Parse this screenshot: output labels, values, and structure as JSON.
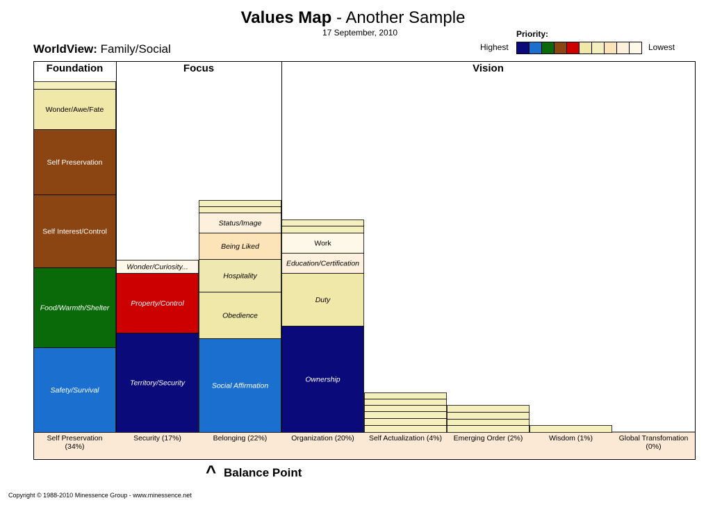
{
  "header": {
    "title_bold": "Values Map",
    "title_rest": " - Another Sample",
    "date": "17 September, 2010",
    "worldview_label": "WorldView:",
    "worldview_value": " Family/Social"
  },
  "legend": {
    "label": "Priority:",
    "highest": "Highest",
    "lowest": "Lowest",
    "colors": [
      "#0a0a7a",
      "#1a6fcf",
      "#0a6a0a",
      "#8b4513",
      "#cc0000",
      "#f0e8a8",
      "#f5efbd",
      "#fce4b8",
      "#fdf0dc",
      "#fdf8e8"
    ]
  },
  "footer": {
    "balance_caret": "^",
    "balance_label": "Balance Point",
    "copyright": "Copyright © 1988-2010 Minessence Group - www.minessence.net"
  },
  "chart_data": {
    "type": "bar",
    "sections": [
      {
        "label": "Foundation",
        "columns": [
          0
        ]
      },
      {
        "label": "Focus",
        "columns": [
          1,
          2
        ]
      },
      {
        "label": "Vision",
        "columns": [
          3,
          4,
          5,
          6,
          7
        ]
      }
    ],
    "categories": [
      {
        "line1": "Self Preservation",
        "line2": "(34%)"
      },
      {
        "line1": "Security  (17%)",
        "line2": ""
      },
      {
        "line1": "Belonging (22%)",
        "line2": ""
      },
      {
        "line1": "Organization (20%)",
        "line2": ""
      },
      {
        "line1": "Self Actualization  (4%)",
        "line2": ""
      },
      {
        "line1": "Emerging Order (2%)",
        "line2": ""
      },
      {
        "line1": "Wisdom  (1%)",
        "line2": ""
      },
      {
        "line1": "Global Transfomation",
        "line2": "(0%)"
      }
    ],
    "percentages": [
      34,
      17,
      22,
      20,
      4,
      2,
      1,
      0
    ],
    "stacks": [
      [
        {
          "label": "Safety/Survival",
          "value": 122,
          "color": "#1a6fcf",
          "text_color": "#ffffff",
          "italic": true
        },
        {
          "label": "Food/Warmth/Shelter",
          "value": 115,
          "color": "#0a6a0a",
          "text_color": "#ffffff",
          "italic": true
        },
        {
          "label": "Self Interest/Control",
          "value": 105,
          "color": "#8b4513",
          "text_color": "#ffffff",
          "italic": false
        },
        {
          "label": "Self Preservation",
          "value": 94,
          "color": "#8b4513",
          "text_color": "#ffffff",
          "italic": false
        },
        {
          "label": "Wonder/Awe/Fate",
          "value": 58,
          "color": "#f0e8a8",
          "text_color": "#000000",
          "italic": false
        },
        {
          "label": "",
          "value": 11,
          "color": "#f5efbd",
          "text_color": "#000000",
          "italic": false
        }
      ],
      [
        {
          "label": "Territory/Security",
          "value": 143,
          "color": "#0a0a7a",
          "text_color": "#ffffff",
          "italic": true
        },
        {
          "label": "Property/Control",
          "value": 86,
          "color": "#cc0000",
          "text_color": "#ffffff",
          "italic": true
        },
        {
          "label": "Wonder/Curiosity...",
          "value": 19,
          "color": "#fdf8e8",
          "text_color": "#000000",
          "italic": true
        }
      ],
      [
        {
          "label": "Social Affirmation",
          "value": 135,
          "color": "#1a6fcf",
          "text_color": "#ffffff",
          "italic": true
        },
        {
          "label": "Obedience",
          "value": 67,
          "color": "#f0e8a8",
          "text_color": "#000000",
          "italic": true
        },
        {
          "label": "Hospitality",
          "value": 47,
          "color": "#efe8b0",
          "text_color": "#000000",
          "italic": true
        },
        {
          "label": "Being Liked",
          "value": 38,
          "color": "#fce4b8",
          "text_color": "#000000",
          "italic": true
        },
        {
          "label": "Status/Image",
          "value": 29,
          "color": "#fdf0dc",
          "text_color": "#000000",
          "italic": true
        },
        {
          "label": "",
          "value": 9,
          "color": "#f5efbd",
          "text_color": "#000000",
          "italic": false
        },
        {
          "label": "",
          "value": 9,
          "color": "#f5efbd",
          "text_color": "#000000",
          "italic": false
        }
      ],
      [
        {
          "label": "Ownership",
          "value": 153,
          "color": "#0a0a7a",
          "text_color": "#ffffff",
          "italic": true
        },
        {
          "label": "Duty",
          "value": 76,
          "color": "#f0e8a8",
          "text_color": "#000000",
          "italic": true
        },
        {
          "label": "Education/Certification",
          "value": 29,
          "color": "#fdf0dc",
          "text_color": "#000000",
          "italic": true
        },
        {
          "label": "Work",
          "value": 29,
          "color": "#fdf8e8",
          "text_color": "#000000",
          "italic": false
        },
        {
          "label": "",
          "value": 10,
          "color": "#f5efbd",
          "text_color": "#000000",
          "italic": false
        },
        {
          "label": "",
          "value": 9,
          "color": "#f5efbd",
          "text_color": "#000000",
          "italic": false
        }
      ],
      [
        {
          "label": "",
          "value": 10,
          "color": "#f5efbd",
          "text_color": "#000000",
          "italic": false
        },
        {
          "label": "",
          "value": 10,
          "color": "#f5efbd",
          "text_color": "#000000",
          "italic": false
        },
        {
          "label": "",
          "value": 10,
          "color": "#f5efbd",
          "text_color": "#000000",
          "italic": false
        },
        {
          "label": "",
          "value": 9,
          "color": "#f5efbd",
          "text_color": "#000000",
          "italic": false
        },
        {
          "label": "",
          "value": 9,
          "color": "#f5efbd",
          "text_color": "#000000",
          "italic": false
        },
        {
          "label": "",
          "value": 9,
          "color": "#f5efbd",
          "text_color": "#000000",
          "italic": false
        }
      ],
      [
        {
          "label": "",
          "value": 10,
          "color": "#f5efbd",
          "text_color": "#000000",
          "italic": false
        },
        {
          "label": "",
          "value": 9,
          "color": "#f5efbd",
          "text_color": "#000000",
          "italic": false
        },
        {
          "label": "",
          "value": 10,
          "color": "#f5efbd",
          "text_color": "#000000",
          "italic": false
        },
        {
          "label": "",
          "value": 10,
          "color": "#f5efbd",
          "text_color": "#000000",
          "italic": false
        }
      ],
      [
        {
          "label": "",
          "value": 10,
          "color": "#f5efbd",
          "text_color": "#000000",
          "italic": false
        }
      ],
      []
    ]
  }
}
